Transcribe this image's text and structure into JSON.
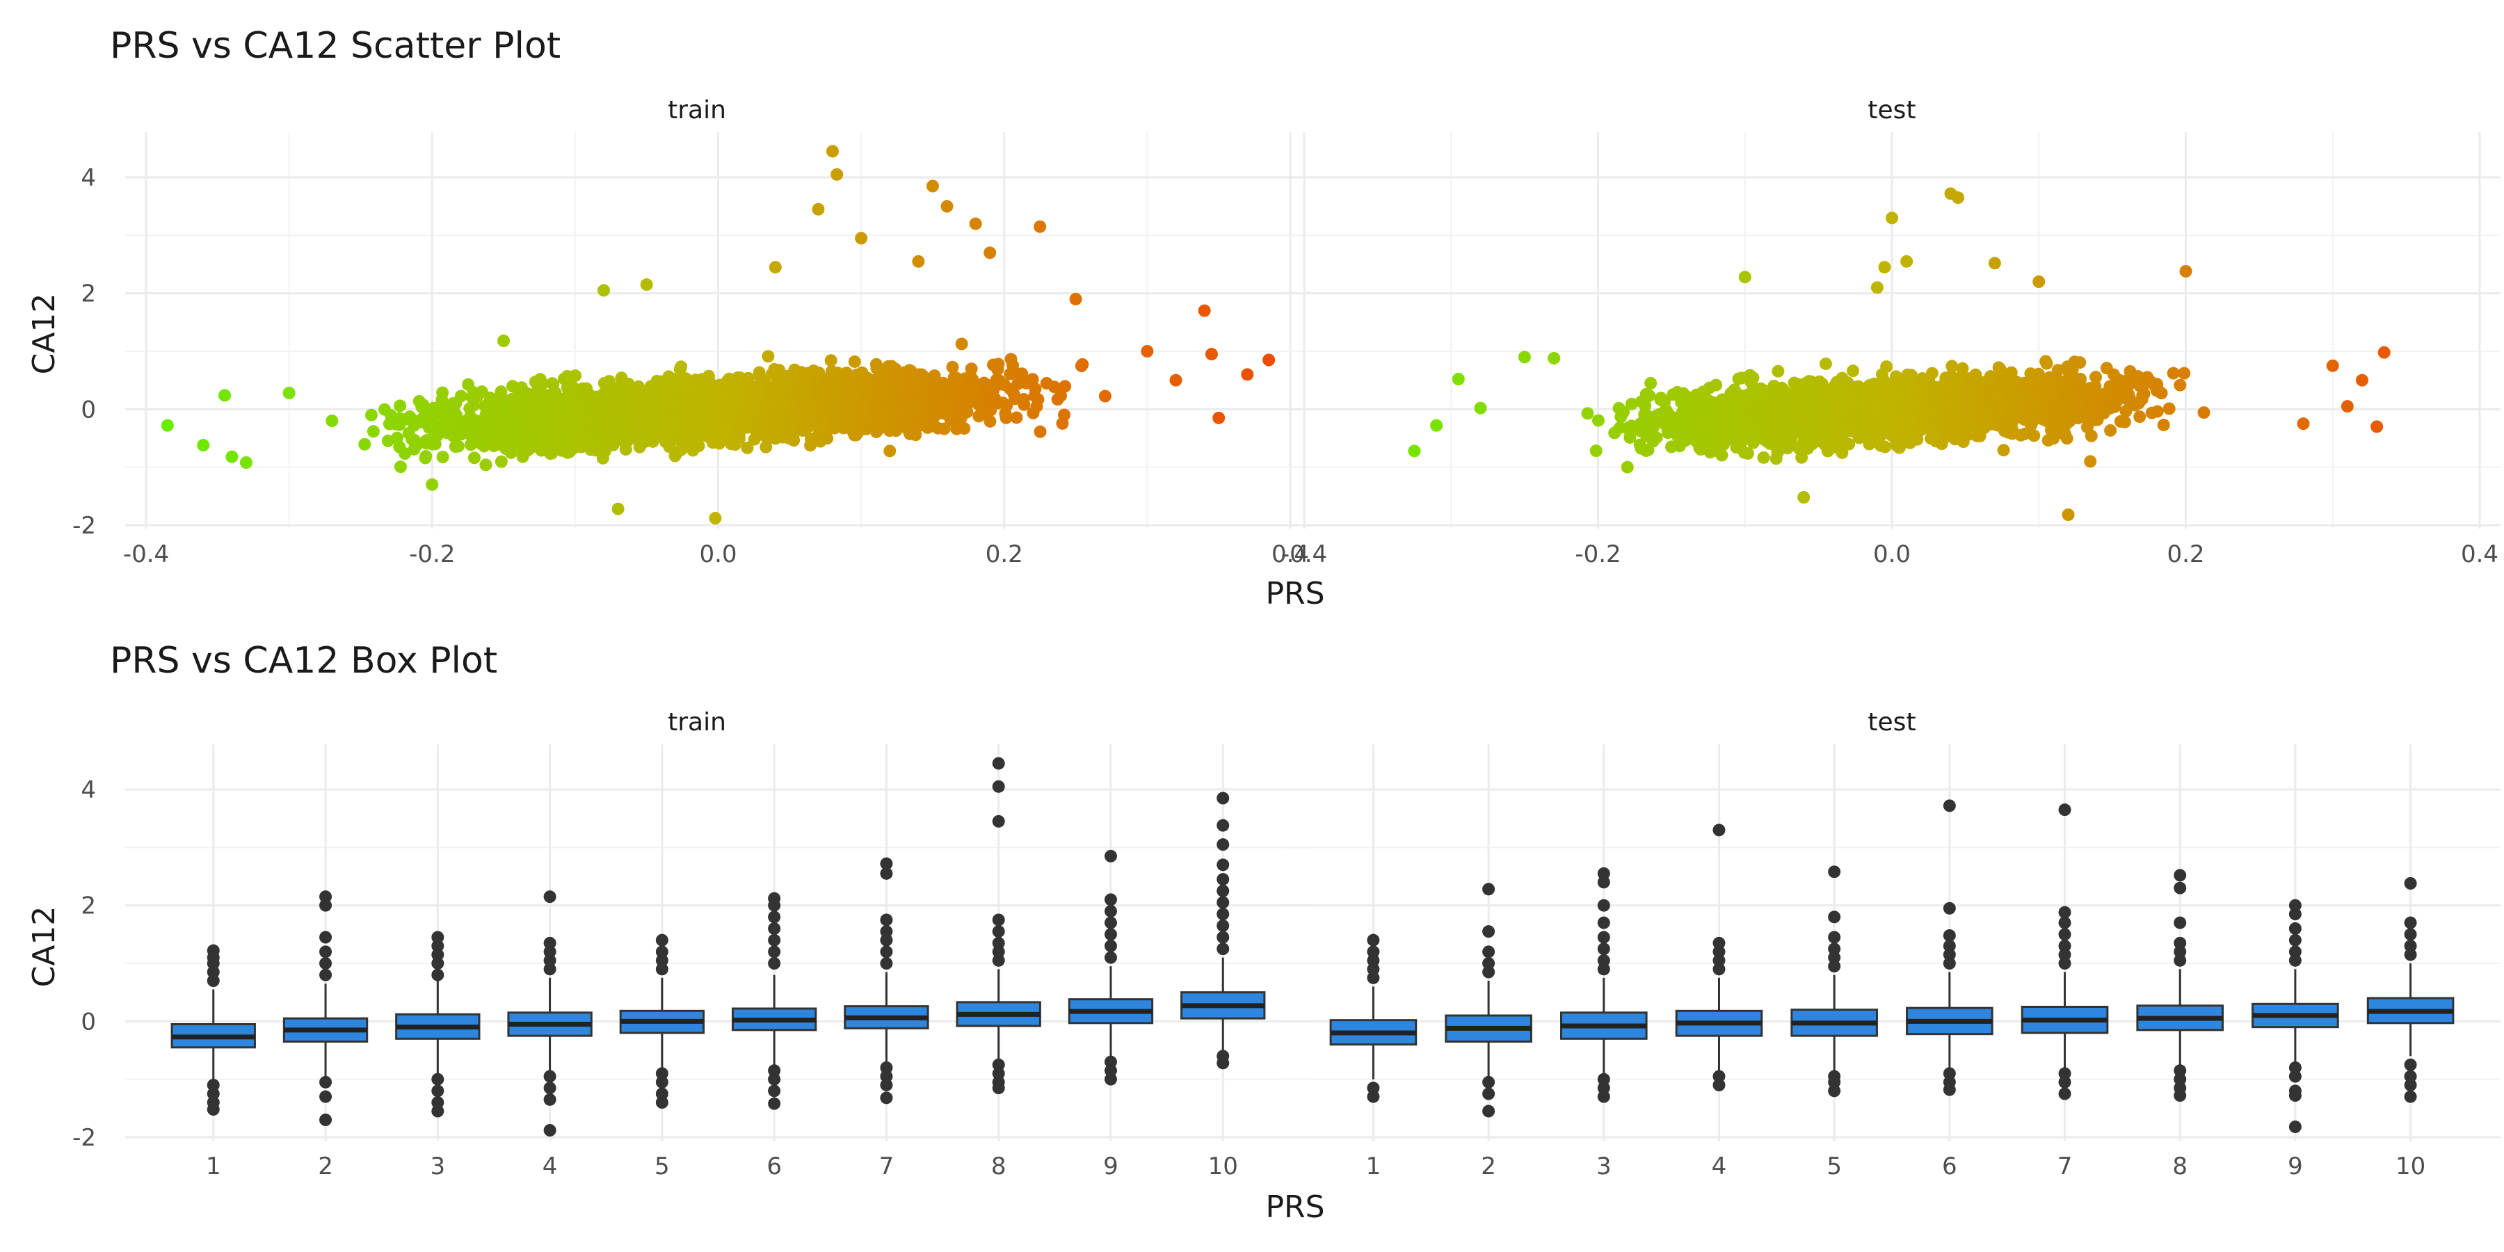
{
  "figure": {
    "scatter_title": "PRS vs CA12 Scatter Plot",
    "box_title": "PRS vs CA12 Box Plot",
    "facet_train": "train",
    "facet_test": "test",
    "x_title": "PRS",
    "y_title": "CA12"
  },
  "chart_data": [
    {
      "type": "scatter",
      "title": "PRS vs CA12 Scatter Plot",
      "xlabel": "PRS",
      "ylabel": "CA12",
      "facets": [
        "train",
        "test"
      ],
      "xlim": [
        -0.4,
        0.4
      ],
      "ylim": [
        -2,
        4
      ],
      "x_ticks": [
        "-0.4",
        "-0.2",
        "0.0",
        "0.2",
        "0.4"
      ],
      "y_ticks": [
        "-2",
        "0",
        "2",
        "4"
      ],
      "grid": true,
      "color_encoding": "PRS",
      "color_scale": [
        "#66ee00",
        "#c0b400",
        "#f04800"
      ],
      "trend": {
        "slope": 1.4,
        "intercept": 0.0
      },
      "series": [
        {
          "name": "train",
          "bulk_x_range": [
            -0.3,
            0.3
          ],
          "points": [
            [
              -0.385,
              -0.28
            ],
            [
              -0.36,
              -0.62
            ],
            [
              -0.345,
              0.24
            ],
            [
              -0.34,
              -0.82
            ],
            [
              -0.33,
              -0.92
            ],
            [
              -0.3,
              0.28
            ],
            [
              -0.27,
              -0.2
            ],
            [
              -0.2,
              -1.3
            ],
            [
              -0.15,
              1.18
            ],
            [
              -0.08,
              2.05
            ],
            [
              -0.07,
              -1.72
            ],
            [
              -0.05,
              2.15
            ],
            [
              -0.002,
              -1.88
            ],
            [
              0.04,
              2.45
            ],
            [
              0.07,
              3.45
            ],
            [
              0.08,
              4.45
            ],
            [
              0.083,
              4.05
            ],
            [
              0.1,
              2.95
            ],
            [
              0.12,
              -0.72
            ],
            [
              0.14,
              2.55
            ],
            [
              0.15,
              3.85
            ],
            [
              0.16,
              3.5
            ],
            [
              0.18,
              3.2
            ],
            [
              0.19,
              2.7
            ],
            [
              0.225,
              3.15
            ],
            [
              0.25,
              1.9
            ],
            [
              0.3,
              1.0
            ],
            [
              0.32,
              0.5
            ],
            [
              0.34,
              1.7
            ],
            [
              0.345,
              0.95
            ],
            [
              0.35,
              -0.15
            ],
            [
              0.37,
              0.6
            ],
            [
              0.385,
              0.85
            ]
          ]
        },
        {
          "name": "test",
          "bulk_x_range": [
            -0.25,
            0.25
          ],
          "points": [
            [
              -0.325,
              -0.72
            ],
            [
              -0.31,
              -0.28
            ],
            [
              -0.295,
              0.52
            ],
            [
              -0.28,
              0.02
            ],
            [
              -0.25,
              0.9
            ],
            [
              -0.23,
              0.88
            ],
            [
              -0.18,
              -1.0
            ],
            [
              -0.1,
              2.28
            ],
            [
              -0.06,
              -1.52
            ],
            [
              -0.01,
              2.1
            ],
            [
              -0.005,
              2.45
            ],
            [
              0.0,
              3.3
            ],
            [
              0.01,
              2.55
            ],
            [
              0.04,
              3.72
            ],
            [
              0.045,
              3.65
            ],
            [
              0.07,
              2.52
            ],
            [
              0.1,
              2.2
            ],
            [
              0.12,
              -1.82
            ],
            [
              0.135,
              -0.9
            ],
            [
              0.2,
              2.38
            ],
            [
              0.28,
              -0.25
            ],
            [
              0.3,
              0.75
            ],
            [
              0.31,
              0.05
            ],
            [
              0.32,
              0.5
            ],
            [
              0.33,
              -0.3
            ],
            [
              0.335,
              0.98
            ]
          ]
        }
      ]
    },
    {
      "type": "box",
      "title": "PRS vs CA12 Box Plot",
      "xlabel": "PRS",
      "ylabel": "CA12",
      "facets": [
        "train",
        "test"
      ],
      "categories": [
        "1",
        "2",
        "3",
        "4",
        "5",
        "6",
        "7",
        "8",
        "9",
        "10"
      ],
      "ylim": [
        -2,
        4
      ],
      "y_ticks": [
        "-2",
        "0",
        "2",
        "4"
      ],
      "box_fill": "#2e86de",
      "grid": true,
      "series": [
        {
          "name": "train",
          "boxes": [
            {
              "q1": -0.45,
              "median": -0.27,
              "q3": -0.05,
              "lo": -1.0,
              "hi": 0.55,
              "out_lo": [
                -1.1,
                -1.25,
                -1.4,
                -1.52
              ],
              "out_hi": [
                0.7,
                0.85,
                1.0,
                1.1,
                1.22
              ]
            },
            {
              "q1": -0.35,
              "median": -0.15,
              "q3": 0.05,
              "lo": -0.95,
              "hi": 0.65,
              "out_lo": [
                -1.05,
                -1.3,
                -1.7
              ],
              "out_hi": [
                0.8,
                1.0,
                1.2,
                1.45,
                2.0,
                2.15
              ]
            },
            {
              "q1": -0.3,
              "median": -0.1,
              "q3": 0.12,
              "lo": -0.9,
              "hi": 0.7,
              "out_lo": [
                -1.0,
                -1.2,
                -1.4,
                -1.55
              ],
              "out_hi": [
                0.8,
                1.0,
                1.15,
                1.3,
                1.45
              ]
            },
            {
              "q1": -0.25,
              "median": -0.05,
              "q3": 0.15,
              "lo": -0.85,
              "hi": 0.75,
              "out_lo": [
                -0.95,
                -1.15,
                -1.35,
                -1.88
              ],
              "out_hi": [
                0.9,
                1.05,
                1.2,
                1.35,
                2.15
              ]
            },
            {
              "q1": -0.2,
              "median": 0.0,
              "q3": 0.18,
              "lo": -0.8,
              "hi": 0.75,
              "out_lo": [
                -0.9,
                -1.05,
                -1.25,
                -1.4
              ],
              "out_hi": [
                0.9,
                1.05,
                1.2,
                1.4
              ]
            },
            {
              "q1": -0.15,
              "median": 0.02,
              "q3": 0.22,
              "lo": -0.75,
              "hi": 0.8,
              "out_lo": [
                -0.85,
                -1.0,
                -1.2,
                -1.42
              ],
              "out_hi": [
                1.0,
                1.2,
                1.4,
                1.6,
                1.8,
                2.0,
                2.12
              ]
            },
            {
              "q1": -0.12,
              "median": 0.06,
              "q3": 0.26,
              "lo": -0.7,
              "hi": 0.85,
              "out_lo": [
                -0.8,
                -0.95,
                -1.1,
                -1.32
              ],
              "out_hi": [
                1.0,
                1.2,
                1.4,
                1.55,
                1.75,
                2.55,
                2.72
              ]
            },
            {
              "q1": -0.08,
              "median": 0.12,
              "q3": 0.33,
              "lo": -0.65,
              "hi": 0.9,
              "out_lo": [
                -0.75,
                -0.9,
                -1.05,
                -1.15
              ],
              "out_hi": [
                1.05,
                1.2,
                1.35,
                1.55,
                1.75,
                3.45,
                4.05,
                4.45
              ]
            },
            {
              "q1": -0.03,
              "median": 0.17,
              "q3": 0.38,
              "lo": -0.6,
              "hi": 0.95,
              "out_lo": [
                -0.7,
                -0.85,
                -1.0
              ],
              "out_hi": [
                1.1,
                1.3,
                1.5,
                1.7,
                1.9,
                2.1,
                2.85
              ]
            },
            {
              "q1": 0.05,
              "median": 0.27,
              "q3": 0.5,
              "lo": -0.5,
              "hi": 1.1,
              "out_lo": [
                -0.6,
                -0.72
              ],
              "out_hi": [
                1.25,
                1.45,
                1.65,
                1.85,
                2.05,
                2.25,
                2.45,
                2.7,
                3.05,
                3.38,
                3.85
              ]
            }
          ]
        },
        {
          "name": "test",
          "boxes": [
            {
              "q1": -0.4,
              "median": -0.2,
              "q3": 0.02,
              "lo": -1.0,
              "hi": 0.6,
              "out_lo": [
                -1.15,
                -1.3
              ],
              "out_hi": [
                0.75,
                0.9,
                1.05,
                1.2,
                1.4
              ]
            },
            {
              "q1": -0.35,
              "median": -0.12,
              "q3": 0.1,
              "lo": -0.95,
              "hi": 0.7,
              "out_lo": [
                -1.05,
                -1.25,
                -1.55
              ],
              "out_hi": [
                0.85,
                1.0,
                1.2,
                1.55,
                2.28
              ]
            },
            {
              "q1": -0.3,
              "median": -0.08,
              "q3": 0.15,
              "lo": -0.9,
              "hi": 0.75,
              "out_lo": [
                -1.0,
                -1.15,
                -1.3
              ],
              "out_hi": [
                0.9,
                1.05,
                1.25,
                1.45,
                1.7,
                2.0,
                2.4,
                2.55
              ]
            },
            {
              "q1": -0.25,
              "median": -0.03,
              "q3": 0.18,
              "lo": -0.85,
              "hi": 0.75,
              "out_lo": [
                -0.95,
                -1.1
              ],
              "out_hi": [
                0.9,
                1.05,
                1.2,
                1.35,
                3.3
              ]
            },
            {
              "q1": -0.25,
              "median": -0.03,
              "q3": 0.2,
              "lo": -0.85,
              "hi": 0.8,
              "out_lo": [
                -0.95,
                -1.05,
                -1.2
              ],
              "out_hi": [
                0.95,
                1.1,
                1.25,
                1.45,
                1.8,
                2.58
              ]
            },
            {
              "q1": -0.22,
              "median": 0.0,
              "q3": 0.23,
              "lo": -0.82,
              "hi": 0.85,
              "out_lo": [
                -0.9,
                -1.05,
                -1.18
              ],
              "out_hi": [
                1.0,
                1.15,
                1.3,
                1.48,
                1.95,
                3.72
              ]
            },
            {
              "q1": -0.2,
              "median": 0.02,
              "q3": 0.25,
              "lo": -0.8,
              "hi": 0.85,
              "out_lo": [
                -0.9,
                -1.05,
                -1.25
              ],
              "out_hi": [
                1.0,
                1.15,
                1.3,
                1.5,
                1.7,
                1.88,
                3.65
              ]
            },
            {
              "q1": -0.15,
              "median": 0.05,
              "q3": 0.27,
              "lo": -0.75,
              "hi": 0.9,
              "out_lo": [
                -0.85,
                -1.0,
                -1.15,
                -1.28
              ],
              "out_hi": [
                1.05,
                1.2,
                1.35,
                1.7,
                2.3,
                2.52
              ]
            },
            {
              "q1": -0.1,
              "median": 0.1,
              "q3": 0.3,
              "lo": -0.7,
              "hi": 0.9,
              "out_lo": [
                -0.8,
                -0.95,
                -1.2,
                -1.28,
                -1.82
              ],
              "out_hi": [
                1.05,
                1.2,
                1.4,
                1.6,
                1.85,
                2.0
              ]
            },
            {
              "q1": -0.03,
              "median": 0.17,
              "q3": 0.4,
              "lo": -0.6,
              "hi": 1.0,
              "out_lo": [
                -0.75,
                -0.95,
                -1.1,
                -1.3
              ],
              "out_hi": [
                1.15,
                1.3,
                1.5,
                1.7,
                2.38
              ]
            }
          ]
        }
      ]
    }
  ]
}
